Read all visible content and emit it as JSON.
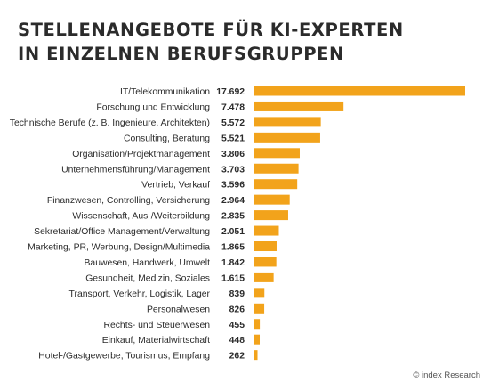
{
  "title_lines": [
    "STELLENANGEBOTE FÜR KI-EXPERTEN",
    "IN EINZELNEN BERUFSGRUPPEN"
  ],
  "credit": "© index Research",
  "colors": {
    "bar": "#f2a31b",
    "text": "#2b2b2b"
  },
  "chart_data": {
    "type": "bar",
    "orientation": "horizontal",
    "categories": [
      "IT/Telekommunikation",
      "Forschung und Entwicklung",
      "Technische Berufe (z. B. Ingenieure, Architekten)",
      "Consulting, Beratung",
      "Organisation/Projektmanagement",
      "Unternehmensführung/Management",
      "Vertrieb, Verkauf",
      "Finanzwesen, Controlling, Versicherung",
      "Wissenschaft, Aus-/Weiterbildung",
      "Sekretariat/Office Management/Verwaltung",
      "Marketing, PR, Werbung, Design/Multimedia",
      "Bauwesen, Handwerk, Umwelt",
      "Gesundheit, Medizin, Soziales",
      "Transport, Verkehr, Logistik, Lager",
      "Personalwesen",
      "Rechts- und Steuerwesen",
      "Einkauf, Materialwirtschaft",
      "Hotel-/Gastgewerbe, Tourismus, Empfang"
    ],
    "values": [
      17692,
      7478,
      5572,
      5521,
      3806,
      3703,
      3596,
      2964,
      2835,
      2051,
      1865,
      1842,
      1615,
      839,
      826,
      455,
      448,
      262
    ],
    "value_labels": [
      "17.692",
      "7.478",
      "5.572",
      "5.521",
      "3.806",
      "3.703",
      "3.596",
      "2.964",
      "2.835",
      "2.051",
      "1.865",
      "1.842",
      "1.615",
      "839",
      "826",
      "455",
      "448",
      "262"
    ],
    "xlim": [
      0,
      17692
    ],
    "grid": false,
    "legend": "none"
  }
}
